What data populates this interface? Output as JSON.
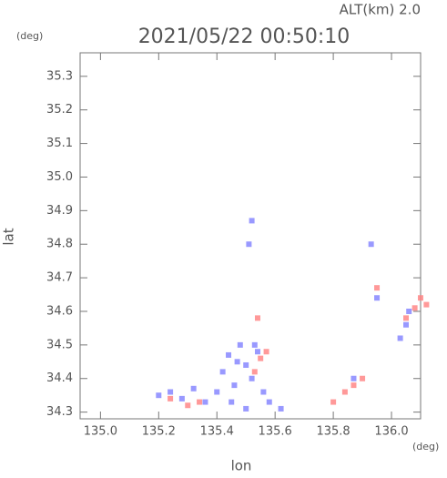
{
  "chart_data": {
    "type": "scatter",
    "header": "ALT(km)  2.0",
    "title": "2021/05/22 00:50:10",
    "y_unit": "(deg)",
    "x_unit": "(deg)",
    "xlabel": "lon",
    "ylabel": "lat",
    "xlim": [
      134.93,
      136.1
    ],
    "ylim": [
      34.28,
      35.37
    ],
    "xticks": [
      {
        "value": 135.0,
        "label": "135.0"
      },
      135.2,
      135.4,
      135.6,
      135.8,
      {
        "value": 136.0,
        "label": "136.0"
      }
    ],
    "yticks": [
      34.3,
      34.4,
      34.5,
      34.6,
      34.7,
      34.8,
      34.9,
      {
        "value": 35.0,
        "label": "35.0"
      },
      35.1,
      35.2,
      35.3
    ],
    "series": [
      {
        "color": "#8080ff",
        "x": [
          135.2,
          135.24,
          135.28,
          135.32,
          135.36,
          135.4,
          135.42,
          135.44,
          135.46,
          135.48,
          135.5,
          135.52,
          135.54,
          135.56,
          135.45,
          135.5,
          135.47,
          135.53,
          135.58,
          135.62,
          135.51,
          135.52,
          135.93,
          136.03,
          136.05,
          136.06,
          135.87,
          135.95
        ],
        "values": [
          34.35,
          34.36,
          34.34,
          34.37,
          34.33,
          34.36,
          34.42,
          34.47,
          34.38,
          34.5,
          34.44,
          34.4,
          34.48,
          34.36,
          34.33,
          34.31,
          34.45,
          34.5,
          34.33,
          34.31,
          34.8,
          34.87,
          34.8,
          34.52,
          34.56,
          34.6,
          34.4,
          34.64
        ]
      },
      {
        "color": "#ff8080",
        "x": [
          135.24,
          135.3,
          135.34,
          135.55,
          135.57,
          135.53,
          135.8,
          135.84,
          135.87,
          135.9,
          135.95,
          136.05,
          136.08,
          136.1,
          136.12,
          135.54
        ],
        "values": [
          34.34,
          34.32,
          34.33,
          34.46,
          34.48,
          34.42,
          34.33,
          34.36,
          34.38,
          34.4,
          34.67,
          34.58,
          34.61,
          34.64,
          34.62,
          34.58
        ]
      }
    ]
  }
}
